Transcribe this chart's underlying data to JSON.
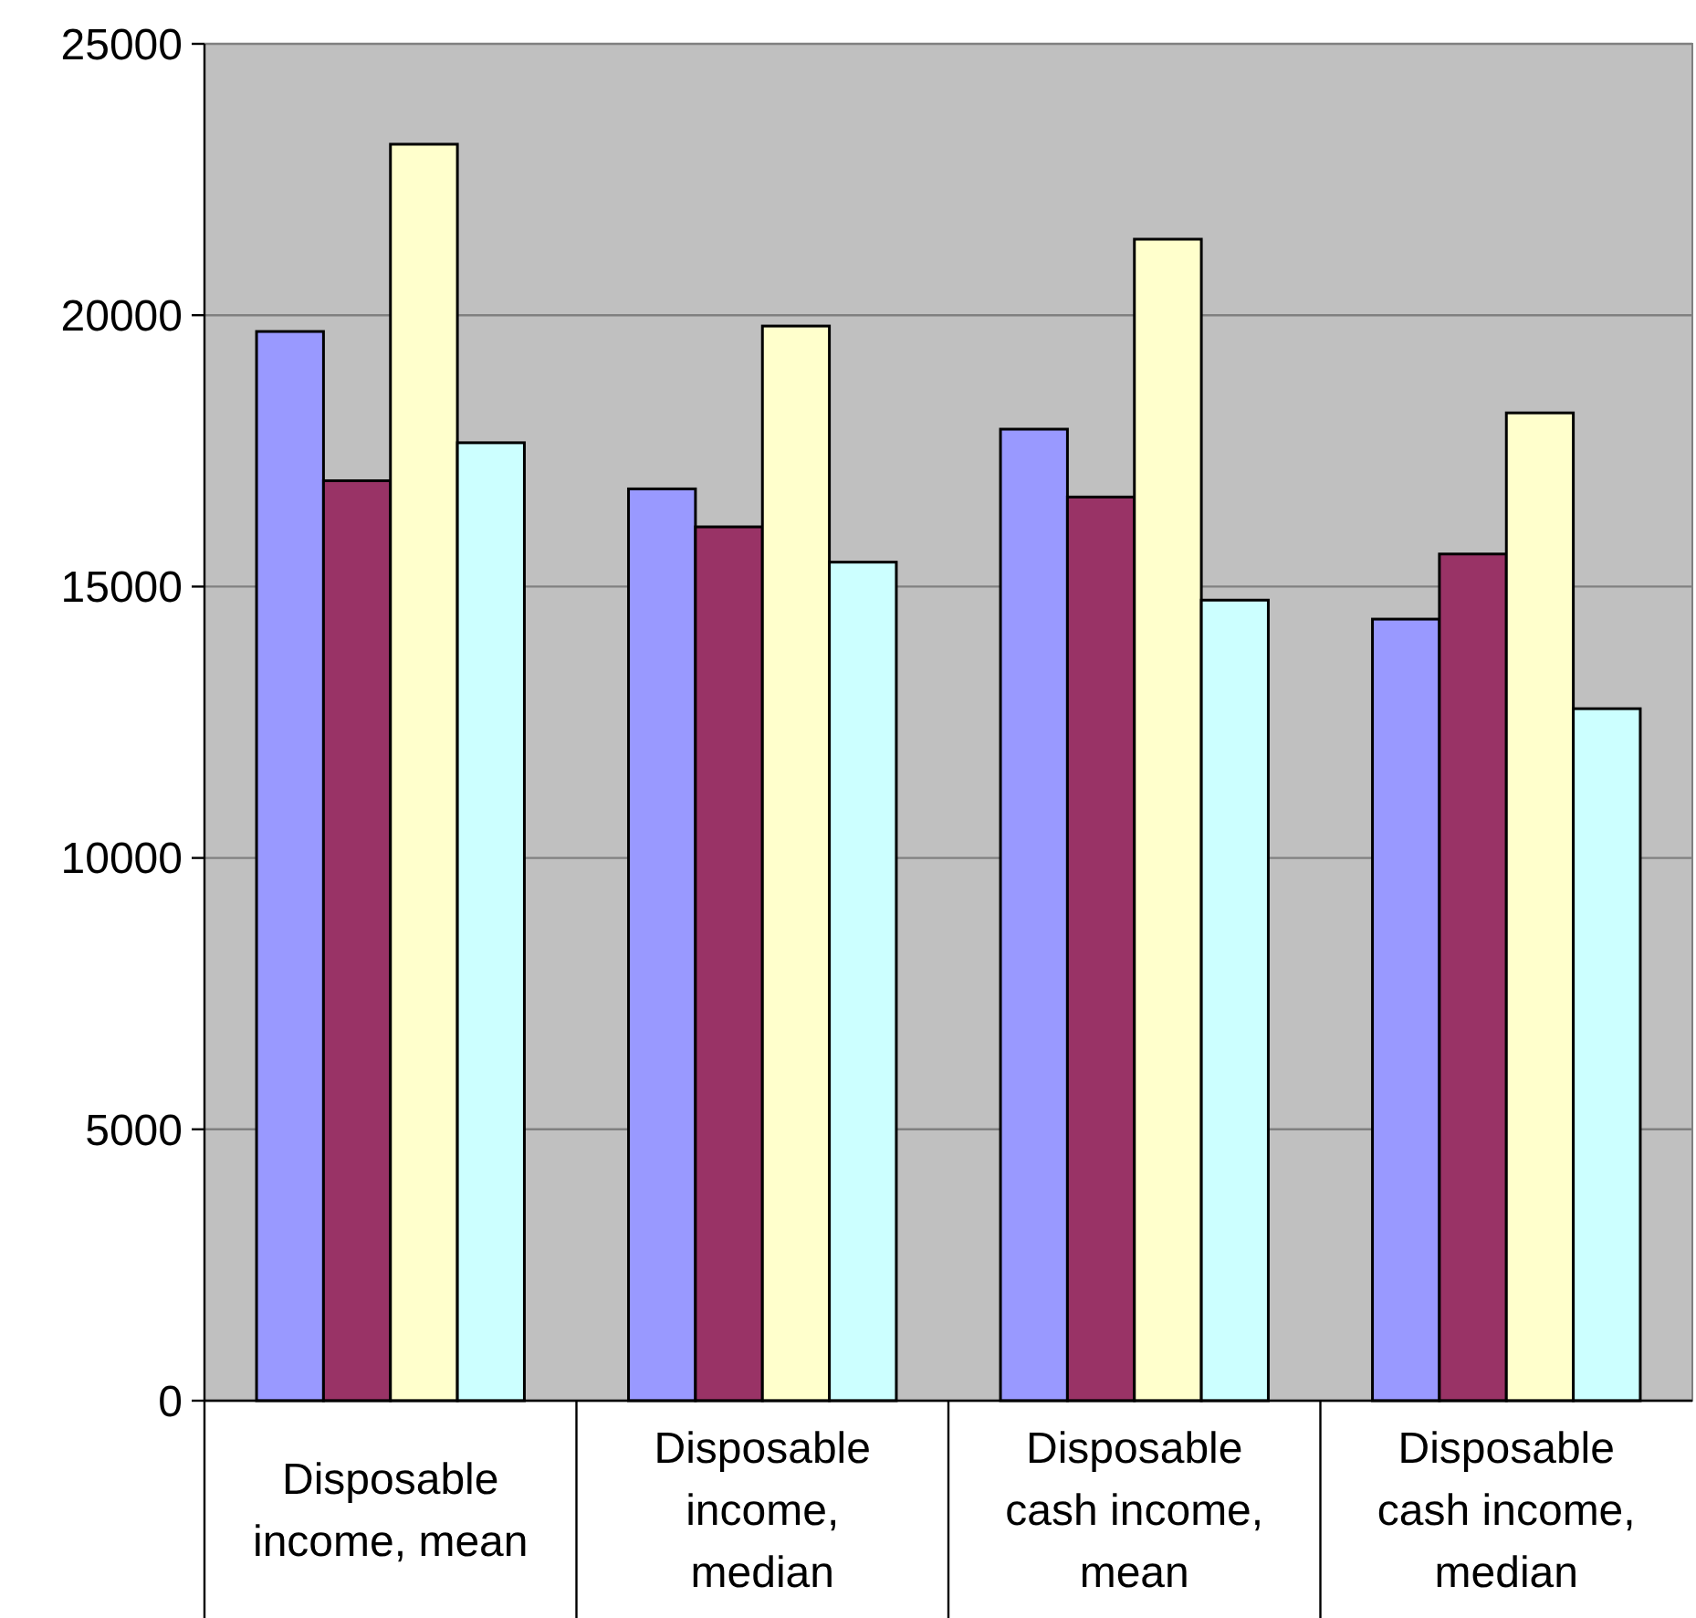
{
  "chart_data": {
    "type": "bar",
    "categories": [
      "Disposable income, mean",
      "Disposable income, median",
      "Disposable cash income, mean",
      "Disposable cash income, median"
    ],
    "series": [
      {
        "color": "#9999ff",
        "values": [
          19700,
          16800,
          17900,
          14400
        ]
      },
      {
        "color": "#993366",
        "values": [
          16950,
          16100,
          16650,
          15600
        ]
      },
      {
        "color": "#ffffcc",
        "values": [
          23150,
          19800,
          21400,
          18200
        ]
      },
      {
        "color": "#ccffff",
        "values": [
          17650,
          15450,
          14750,
          12750
        ]
      }
    ],
    "ylim": [
      0,
      25000
    ],
    "yticks": [
      0,
      5000,
      10000,
      15000,
      20000,
      25000
    ],
    "grid": "y"
  }
}
